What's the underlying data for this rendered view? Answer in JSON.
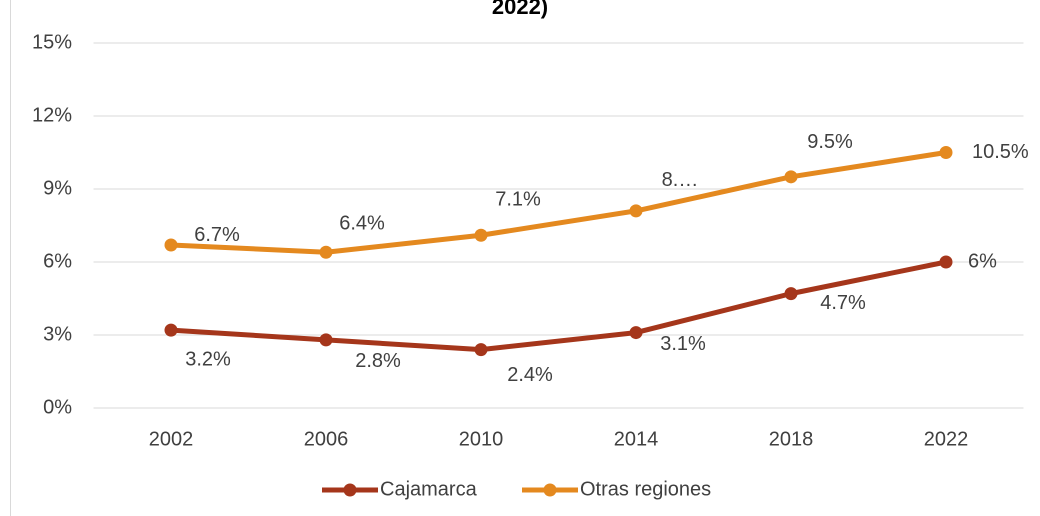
{
  "chart_data": {
    "type": "line",
    "title": "2022)",
    "categories": [
      "2002",
      "2006",
      "2010",
      "2014",
      "2018",
      "2022"
    ],
    "series": [
      {
        "name": "Cajamarca",
        "color": "#a5361b",
        "values": [
          3.2,
          2.8,
          2.4,
          3.1,
          4.7,
          6
        ],
        "value_labels": [
          "3.2%",
          "2.8%",
          "2.4%",
          "3.1%",
          "4.7%",
          "6%"
        ]
      },
      {
        "name": "Otras regiones",
        "color": "#e4891f",
        "values": [
          6.7,
          6.4,
          7.1,
          8.1,
          9.5,
          10.5
        ],
        "value_labels": [
          "6.7%",
          "6.4%",
          "7.1%",
          "8.…",
          "9.5%",
          "10.5%"
        ]
      }
    ],
    "ylim": [
      0,
      15
    ],
    "yticks": [
      {
        "value": 0,
        "label": "0%"
      },
      {
        "value": 3,
        "label": "3%"
      },
      {
        "value": 6,
        "label": "6%"
      },
      {
        "value": 9,
        "label": "9%"
      },
      {
        "value": 12,
        "label": "12%"
      },
      {
        "value": 15,
        "label": "15%"
      }
    ],
    "grid": true,
    "legend": "bottom"
  }
}
